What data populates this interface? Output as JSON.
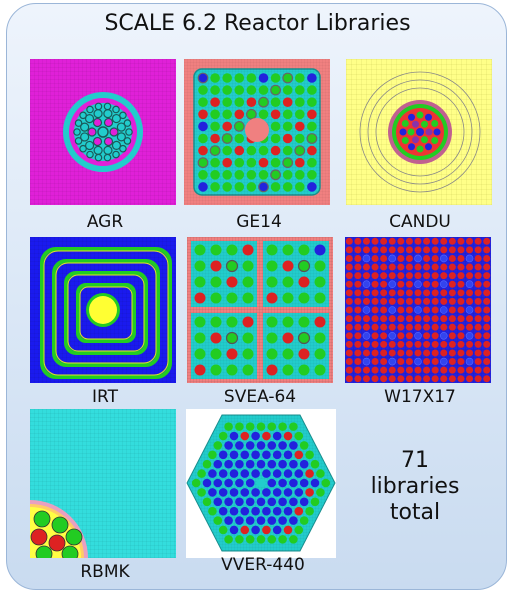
{
  "title": "SCALE 6.2 Reactor Libraries",
  "libraries": [
    {
      "label": "AGR"
    },
    {
      "label": "GE14"
    },
    {
      "label": "CANDU"
    },
    {
      "label": "IRT"
    },
    {
      "label": "SVEA-64"
    },
    {
      "label": "W17X17"
    },
    {
      "label": "RBMK"
    },
    {
      "label": "VVER-440"
    }
  ],
  "summary": {
    "count": "71",
    "line2": "libraries",
    "line3": "total"
  },
  "colors": {
    "agr_bg": "#e020d8",
    "cyan": "#22cccc",
    "ge_bg": "#f08080",
    "green": "#22cc22",
    "red": "#dd2222",
    "blue": "#2222dd",
    "yellow": "#ffff66",
    "deep_blue": "#1a1aee"
  }
}
